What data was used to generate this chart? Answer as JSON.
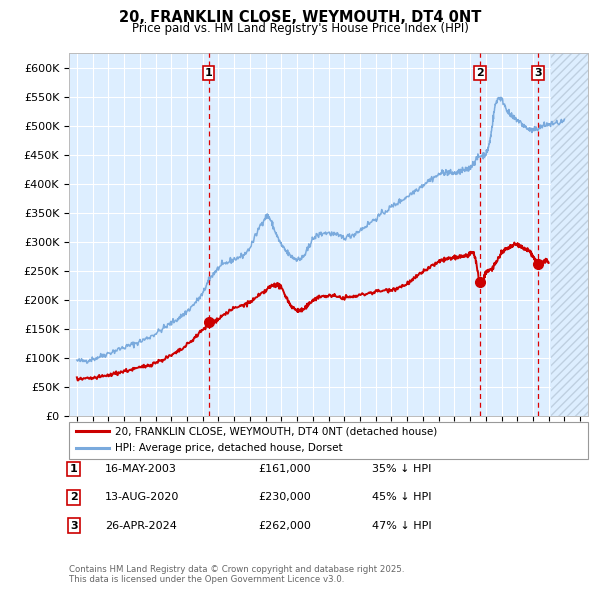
{
  "title": "20, FRANKLIN CLOSE, WEYMOUTH, DT4 0NT",
  "subtitle": "Price paid vs. HM Land Registry's House Price Index (HPI)",
  "ylabel_ticks": [
    "£0",
    "£50K",
    "£100K",
    "£150K",
    "£200K",
    "£250K",
    "£300K",
    "£350K",
    "£400K",
    "£450K",
    "£500K",
    "£550K",
    "£600K"
  ],
  "ytick_vals": [
    0,
    50000,
    100000,
    150000,
    200000,
    250000,
    300000,
    350000,
    400000,
    450000,
    500000,
    550000,
    600000
  ],
  "ylim": [
    0,
    625000
  ],
  "xlim_start": 1994.5,
  "xlim_end": 2027.5,
  "bg_color": "#ddeeff",
  "grid_color": "#ffffff",
  "sale_markers": [
    {
      "date_num": 2003.37,
      "price": 161000,
      "label": "1"
    },
    {
      "date_num": 2020.62,
      "price": 230000,
      "label": "2"
    },
    {
      "date_num": 2024.32,
      "price": 262000,
      "label": "3"
    }
  ],
  "vline_dates": [
    2003.37,
    2020.62,
    2024.32
  ],
  "legend_entries": [
    {
      "color": "#cc0000",
      "label": "20, FRANKLIN CLOSE, WEYMOUTH, DT4 0NT (detached house)"
    },
    {
      "color": "#7aaadd",
      "label": "HPI: Average price, detached house, Dorset"
    }
  ],
  "table_rows": [
    {
      "num": "1",
      "date": "16-MAY-2003",
      "price": "£161,000",
      "hpi": "35% ↓ HPI"
    },
    {
      "num": "2",
      "date": "13-AUG-2020",
      "price": "£230,000",
      "hpi": "45% ↓ HPI"
    },
    {
      "num": "3",
      "date": "26-APR-2024",
      "price": "£262,000",
      "hpi": "47% ↓ HPI"
    }
  ],
  "footnote": "Contains HM Land Registry data © Crown copyright and database right 2025.\nThis data is licensed under the Open Government Licence v3.0.",
  "hpi_line_color": "#7aaadd",
  "price_line_color": "#cc0000",
  "marker_color": "#cc0000",
  "hatch_start": 2025.17
}
